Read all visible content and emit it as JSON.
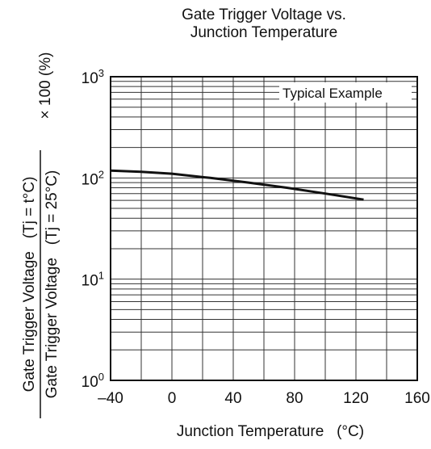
{
  "chart_data": {
    "type": "line",
    "title_line1": "Gate Trigger Voltage vs.",
    "title_line2": "Junction Temperature",
    "xlabel": "Junction Temperature   (°C)",
    "ylabel": {
      "numerator": "Gate Trigger Voltage   (Tj = t°C)",
      "denominator": "Gate Trigger Voltage   (Tj = 25°C)",
      "multiplier": "× 100 (%)"
    },
    "annotation": "Typical Example",
    "x_scale": "linear",
    "y_scale": "log",
    "xlim": [
      -40,
      160
    ],
    "ylim": [
      1,
      1000
    ],
    "grid": true,
    "x_ticks": [
      -40,
      0,
      40,
      80,
      120,
      160
    ],
    "x_tick_labels": [
      "–40",
      "0",
      "40",
      "80",
      "120",
      "160"
    ],
    "y_ticks": [
      {
        "base": "10",
        "exp": "0",
        "value": 1
      },
      {
        "base": "10",
        "exp": "1",
        "value": 10
      },
      {
        "base": "10",
        "exp": "2",
        "value": 100
      },
      {
        "base": "10",
        "exp": "3",
        "value": 1000
      }
    ],
    "series": [
      {
        "x": [
          -40,
          -20,
          0,
          25,
          50,
          75,
          100,
          125
        ],
        "y": [
          118,
          115,
          110,
          100,
          90,
          80,
          70,
          61
        ]
      }
    ]
  }
}
